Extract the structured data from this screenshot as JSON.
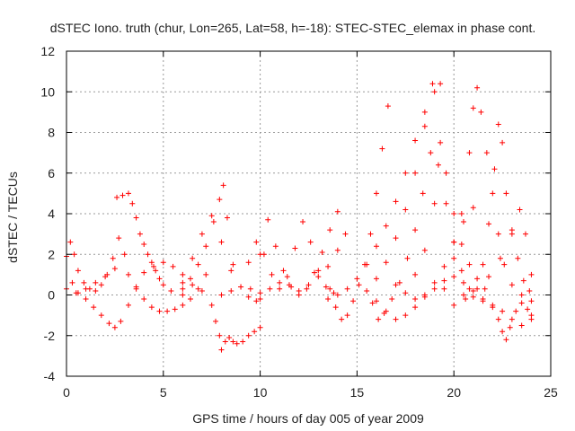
{
  "chart_data": {
    "type": "scatter",
    "title": "dSTEC Iono. truth (chur, Lon=265, Lat=58, h=-18): STEC-STEC_elemax in phase cont.",
    "xlabel": "GPS time / hours of day 005 of year 2009",
    "ylabel": "dSTEC / TECUs",
    "xlim": [
      0,
      25
    ],
    "ylim": [
      -4,
      12
    ],
    "xticks": [
      0,
      5,
      10,
      15,
      20,
      25
    ],
    "yticks": [
      -4,
      -2,
      0,
      2,
      4,
      6,
      8,
      10,
      12
    ],
    "grid": true,
    "marker": "+",
    "color": "#ff0000",
    "series": [
      {
        "x": [
          0.0,
          0.3,
          0.6,
          1.0,
          1.4,
          1.8,
          2.2,
          2.5,
          2.8,
          3.2,
          3.6,
          4.0,
          4.5,
          5.0,
          5.5,
          6.0,
          6.5,
          7.0
        ],
        "y": [
          1.9,
          0.6,
          0.1,
          -0.2,
          -0.6,
          -1.0,
          -1.4,
          -1.6,
          -1.3,
          -0.5,
          0.4,
          1.1,
          1.4,
          1.6,
          1.4,
          1.0,
          0.5,
          0.2
        ]
      },
      {
        "x": [
          0.2,
          0.4,
          0.6,
          0.9,
          1.2,
          1.5,
          1.8,
          2.1,
          2.4,
          2.7
        ],
        "y": [
          2.6,
          2.0,
          1.2,
          0.6,
          0.3,
          0.2,
          0.5,
          1.0,
          1.8,
          2.8
        ]
      },
      {
        "x": [
          0.0,
          0.5,
          1.0,
          1.5,
          2.0,
          2.5,
          3.0
        ],
        "y": [
          0.3,
          0.1,
          0.3,
          0.6,
          0.9,
          1.3,
          2.0
        ]
      },
      {
        "x": [
          2.6,
          2.9,
          3.2,
          3.4,
          3.6,
          3.8,
          4.0,
          4.2,
          4.4,
          4.6,
          4.8,
          5.0,
          5.4,
          6.0
        ],
        "y": [
          4.8,
          4.9,
          5.0,
          4.5,
          3.8,
          3.0,
          2.5,
          2.0,
          1.6,
          1.2,
          0.8,
          0.5,
          0.2,
          0.0
        ]
      },
      {
        "x": [
          3.2,
          3.6,
          4.0,
          4.4,
          4.8,
          5.2,
          5.6,
          6.0,
          6.4,
          6.8,
          7.2
        ],
        "y": [
          1.0,
          0.3,
          -0.2,
          -0.6,
          -0.8,
          -0.8,
          -0.7,
          -0.5,
          -0.2,
          0.3,
          1.0
        ]
      },
      {
        "x": [
          6.0,
          6.4,
          6.8,
          7.2,
          7.6,
          7.9,
          8.1,
          8.3,
          8.6,
          9.0,
          9.4,
          9.8,
          10.0
        ],
        "y": [
          0.3,
          0.8,
          1.5,
          2.4,
          3.6,
          4.7,
          5.4,
          3.8,
          1.5,
          0.4,
          -0.1,
          -0.3,
          -0.2
        ]
      },
      {
        "x": [
          7.5,
          7.7,
          7.9,
          8.0,
          8.2,
          8.4,
          8.6,
          8.8,
          9.1,
          9.4,
          9.7,
          10.0
        ],
        "y": [
          -0.5,
          -1.3,
          -2.0,
          -2.7,
          -2.3,
          -2.1,
          -2.3,
          -2.4,
          -2.3,
          -2.0,
          -1.8,
          -1.6
        ]
      },
      {
        "x": [
          6.0,
          6.5,
          7.0,
          7.5,
          8.0,
          8.5,
          9.0,
          9.4,
          9.8,
          10.2,
          10.6,
          11.0,
          11.4,
          11.8,
          12.2,
          12.6,
          13.0,
          13.4,
          13.8
        ],
        "y": [
          0.6,
          1.8,
          3.0,
          3.9,
          2.6,
          1.2,
          0.4,
          1.6,
          2.6,
          2.0,
          1.0,
          0.3,
          0.9,
          2.3,
          3.6,
          2.6,
          1.2,
          0.4,
          0.1
        ]
      },
      {
        "x": [
          8.0,
          8.5,
          9.0,
          9.5,
          10.0,
          10.5,
          11.0,
          11.5,
          12.0,
          12.5,
          13.0,
          13.5,
          14.0
        ],
        "y": [
          0.0,
          0.2,
          0.4,
          0.3,
          0.1,
          0.3,
          0.6,
          0.5,
          0.2,
          0.5,
          0.9,
          1.4,
          2.2
        ]
      },
      {
        "x": [
          10.0,
          10.4,
          10.8,
          11.2,
          11.6,
          12.0,
          12.4,
          12.8,
          13.2,
          13.6,
          14.0,
          14.4
        ],
        "y": [
          2.0,
          3.7,
          2.4,
          1.2,
          0.4,
          0.0,
          0.3,
          1.1,
          2.1,
          3.2,
          4.1,
          3.0
        ]
      },
      {
        "x": [
          13.6,
          13.9,
          14.2,
          14.5,
          14.8,
          15.1,
          15.4,
          15.7,
          16.0,
          16.3,
          16.6
        ],
        "y": [
          0.3,
          -0.6,
          -1.2,
          -1.0,
          -0.3,
          0.5,
          1.5,
          3.0,
          5.0,
          7.2,
          9.3
        ]
      },
      {
        "x": [
          13.5,
          14.0,
          14.5,
          15.0,
          15.5,
          16.0,
          16.5,
          17.0,
          17.5,
          18.0,
          18.5,
          19.0,
          19.3
        ],
        "y": [
          -0.2,
          0.0,
          0.3,
          0.8,
          1.5,
          2.4,
          3.4,
          4.6,
          6.0,
          7.6,
          9.0,
          10.0,
          10.4
        ]
      },
      {
        "x": [
          15.8,
          16.1,
          16.4,
          16.8,
          17.2,
          17.6,
          18.0,
          18.4,
          18.8,
          19.2,
          19.6,
          20.0,
          20.4,
          20.8
        ],
        "y": [
          -0.4,
          -1.2,
          -0.9,
          -0.2,
          0.6,
          1.8,
          3.2,
          5.0,
          7.0,
          6.4,
          4.5,
          2.6,
          1.2,
          0.3
        ]
      },
      {
        "x": [
          15.5,
          16.0,
          16.5,
          17.0,
          17.5,
          18.0,
          18.5,
          18.9
        ],
        "y": [
          0.2,
          0.8,
          1.6,
          2.8,
          4.2,
          6.0,
          8.3,
          10.4
        ]
      },
      {
        "x": [
          16.0,
          16.5,
          17.0,
          17.5,
          18.0,
          18.5,
          19.0,
          19.5,
          20.0,
          20.5,
          21.0
        ],
        "y": [
          -0.3,
          -0.8,
          -1.2,
          -1.0,
          -0.6,
          0.0,
          0.6,
          1.4,
          2.6,
          3.6,
          4.3
        ]
      },
      {
        "x": [
          17.0,
          17.5,
          18.0,
          18.5,
          19.0,
          19.5,
          20.0,
          20.5,
          21.0,
          21.5,
          22.0,
          22.5,
          23.0,
          23.5,
          24.0
        ],
        "y": [
          0.5,
          0.1,
          -0.2,
          -0.1,
          0.3,
          0.7,
          0.9,
          0.6,
          0.2,
          -0.2,
          -0.5,
          -0.8,
          -1.2,
          -1.5,
          -1.0
        ]
      },
      {
        "x": [
          19.5,
          20.0,
          20.4,
          20.8,
          21.0,
          21.2,
          21.4,
          21.7,
          22.0,
          22.3,
          22.6,
          23.0,
          23.5,
          24.0
        ],
        "y": [
          0.3,
          1.8,
          4.0,
          7.0,
          9.2,
          10.2,
          9.0,
          7.0,
          5.0,
          3.0,
          1.5,
          0.5,
          0.0,
          -0.3
        ]
      },
      {
        "x": [
          21.5,
          21.8,
          22.1,
          22.3,
          22.5,
          22.7,
          23.0,
          23.3,
          23.6,
          23.9
        ],
        "y": [
          1.5,
          3.5,
          6.2,
          8.4,
          7.5,
          5.0,
          3.2,
          1.8,
          0.7,
          0.2
        ]
      },
      {
        "x": [
          20.5,
          21.0,
          21.5,
          22.0,
          22.3,
          22.5,
          22.7,
          22.9,
          23.2,
          23.5,
          23.8,
          24.0
        ],
        "y": [
          0.0,
          -0.1,
          -0.3,
          -0.6,
          -1.2,
          -1.8,
          -2.2,
          -1.6,
          -0.8,
          -0.4,
          -0.7,
          -1.2
        ]
      },
      {
        "x": [
          20.0,
          20.6,
          21.2,
          21.8,
          22.4,
          23.0,
          23.4,
          23.7,
          24.0
        ],
        "y": [
          -0.5,
          -0.2,
          0.3,
          0.9,
          1.8,
          3.0,
          4.2,
          3.0,
          1.0
        ]
      },
      {
        "x": [
          18.0,
          18.5,
          19.0,
          19.3,
          19.6,
          20.0,
          20.4,
          20.8,
          21.2,
          21.6
        ],
        "y": [
          1.0,
          2.2,
          4.5,
          7.5,
          6.0,
          4.0,
          2.5,
          1.5,
          0.8,
          0.3
        ]
      }
    ]
  }
}
